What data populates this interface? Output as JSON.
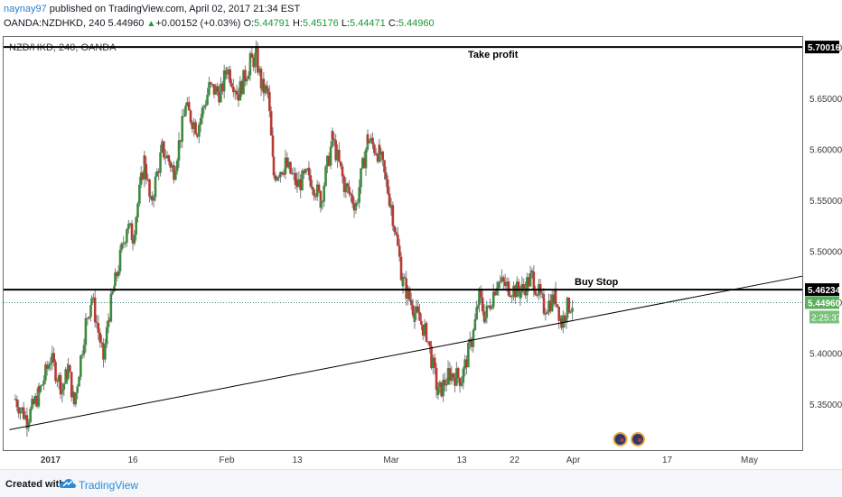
{
  "header": {
    "author": "naynay97",
    "published": "published on TradingView.com, April 02, 2017 21:34 EST",
    "symbol": "OANDA:NZDHKD, 240",
    "last": "5.44960",
    "change_arrow": "▲",
    "change": "+0.00152 (+0.03%)",
    "o_label": "O:",
    "o_value": "5.44791",
    "h_label": "H:",
    "h_value": "5.45176",
    "l_label": "L:",
    "l_value": "5.44471",
    "c_label": "C:",
    "c_value": "5.44960"
  },
  "chart_title": "NZD/HKD, 240, OANDA",
  "footer": {
    "created_with": "Created with",
    "brand": "TradingView",
    "logo_icon": "tradingview-cloud-icon"
  },
  "colors": {
    "up": "#3d8a3f",
    "down": "#b83a33",
    "wick": "#7d7d7d",
    "level_line": "#000000",
    "last_price_label": "#5ab05d",
    "timer_label": "#79c17b",
    "dashed_line": "#3a8a7c",
    "author": "#2a7fcb"
  },
  "chart_data": {
    "type": "candlestick",
    "title": "NZD/HKD, 240, OANDA",
    "ylim": [
      5.305,
      5.71
    ],
    "yticks": [
      {
        "value": 5.35,
        "label": "5.35000"
      },
      {
        "value": 5.4,
        "label": "5.40000"
      },
      {
        "value": 5.45,
        "label": "5.45000"
      },
      {
        "value": 5.5,
        "label": "5.50000"
      },
      {
        "value": 5.55,
        "label": "5.55000"
      },
      {
        "value": 5.6,
        "label": "5.60000"
      },
      {
        "value": 5.65,
        "label": "5.65000"
      },
      {
        "value": 5.7,
        "label": "5.70000"
      }
    ],
    "xticks": [
      {
        "date": "2017-01-02",
        "label": "2017"
      },
      {
        "date": "2017-01-16",
        "label": "16"
      },
      {
        "date": "2017-02-01",
        "label": "Feb"
      },
      {
        "date": "2017-02-13",
        "label": "13"
      },
      {
        "date": "2017-03-01",
        "label": "Mar"
      },
      {
        "date": "2017-03-13",
        "label": "13"
      },
      {
        "date": "2017-03-22",
        "label": "22"
      },
      {
        "date": "2017-04-01",
        "label": "Apr"
      },
      {
        "date": "2017-04-17",
        "label": "17"
      },
      {
        "date": "2017-05-01",
        "label": "May"
      }
    ],
    "x_range": [
      "2016-12-25",
      "2017-05-10"
    ],
    "candle_path": [
      [
        "2016-12-27",
        5.355
      ],
      [
        "2016-12-29",
        5.335
      ],
      [
        "2016-12-31",
        5.36
      ],
      [
        "2017-01-02",
        5.395
      ],
      [
        "2017-01-04",
        5.365
      ],
      [
        "2017-01-05",
        5.385
      ],
      [
        "2017-01-06",
        5.35
      ],
      [
        "2017-01-08",
        5.43
      ],
      [
        "2017-01-09",
        5.455
      ],
      [
        "2017-01-11",
        5.395
      ],
      [
        "2017-01-12",
        5.44
      ],
      [
        "2017-01-13",
        5.47
      ],
      [
        "2017-01-15",
        5.525
      ],
      [
        "2017-01-16",
        5.515
      ],
      [
        "2017-01-18",
        5.59
      ],
      [
        "2017-01-19",
        5.545
      ],
      [
        "2017-01-21",
        5.6
      ],
      [
        "2017-01-23",
        5.58
      ],
      [
        "2017-01-25",
        5.64
      ],
      [
        "2017-01-27",
        5.62
      ],
      [
        "2017-01-29",
        5.66
      ],
      [
        "2017-01-31",
        5.655
      ],
      [
        "2017-02-01",
        5.68
      ],
      [
        "2017-02-03",
        5.655
      ],
      [
        "2017-02-05",
        5.685
      ],
      [
        "2017-02-06",
        5.69
      ],
      [
        "2017-02-07",
        5.66
      ],
      [
        "2017-02-08",
        5.655
      ],
      [
        "2017-02-09",
        5.575
      ],
      [
        "2017-02-11",
        5.585
      ],
      [
        "2017-02-13",
        5.565
      ],
      [
        "2017-02-15",
        5.575
      ],
      [
        "2017-02-17",
        5.55
      ],
      [
        "2017-02-19",
        5.61
      ],
      [
        "2017-02-21",
        5.565
      ],
      [
        "2017-02-23",
        5.545
      ],
      [
        "2017-02-25",
        5.61
      ],
      [
        "2017-02-27",
        5.595
      ],
      [
        "2017-03-01",
        5.545
      ],
      [
        "2017-03-03",
        5.47
      ],
      [
        "2017-03-05",
        5.44
      ],
      [
        "2017-03-07",
        5.42
      ],
      [
        "2017-03-09",
        5.36
      ],
      [
        "2017-03-11",
        5.38
      ],
      [
        "2017-03-13",
        5.375
      ],
      [
        "2017-03-15",
        5.42
      ],
      [
        "2017-03-16",
        5.455
      ],
      [
        "2017-03-17",
        5.435
      ],
      [
        "2017-03-19",
        5.47
      ],
      [
        "2017-03-21",
        5.465
      ],
      [
        "2017-03-23",
        5.46
      ],
      [
        "2017-03-25",
        5.475
      ],
      [
        "2017-03-27",
        5.445
      ],
      [
        "2017-03-29",
        5.455
      ],
      [
        "2017-03-30",
        5.43
      ],
      [
        "2017-03-31",
        5.445
      ],
      [
        "2017-04-01",
        5.4496
      ]
    ],
    "series": [
      {
        "name": "",
        "kind": "horizontal",
        "value": 5.70016,
        "label": "Take profit",
        "x_start": "2016-12-25",
        "x_end": "2017-05-10"
      },
      {
        "name": "",
        "kind": "horizontal",
        "value": 5.46234,
        "label": "Buy Stop",
        "x_start": "2016-12-25",
        "x_end": "2017-05-10"
      },
      {
        "name": "",
        "kind": "trendline",
        "points": [
          [
            "2016-12-26",
            5.325
          ],
          [
            "2017-05-10",
            5.4755
          ]
        ]
      }
    ],
    "last_price": {
      "value": 5.4496,
      "label": "5.44960"
    },
    "take_profit_tag": {
      "value": 5.70016,
      "label": "5.70016"
    },
    "buy_stop_tag": {
      "value": 5.46234,
      "label": "5.46234"
    },
    "countdown": "2:25:37",
    "event_markers": [
      "2017-04-09",
      "2017-04-12"
    ],
    "event_marker_icon": "flag-circle-icon"
  }
}
